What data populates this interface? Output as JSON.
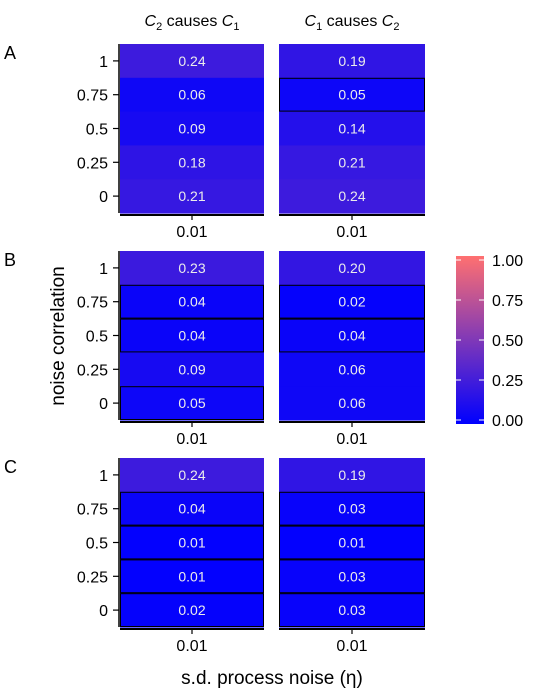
{
  "chart_data": {
    "type": "heatmap",
    "column_headers": [
      {
        "main": "C",
        "sub1": "2",
        "mid": " causes ",
        "main2": "C",
        "sub2": "1"
      },
      {
        "main": "C",
        "sub1": "1",
        "mid": " causes ",
        "main2": "C",
        "sub2": "2"
      }
    ],
    "ylabel": "noise correlation",
    "xlabel": "s.d. process noise (η)",
    "y_ticks": [
      "1",
      "0.75",
      "0.5",
      "0.25",
      "0"
    ],
    "x_ticks": [
      "0.01"
    ],
    "panels": [
      {
        "label": "A",
        "columns": [
          [
            0.24,
            0.06,
            0.09,
            0.18,
            0.21
          ],
          [
            0.19,
            0.05,
            0.14,
            0.21,
            0.24
          ]
        ],
        "outlined": [
          [],
          [
            1
          ]
        ]
      },
      {
        "label": "B",
        "columns": [
          [
            0.23,
            0.04,
            0.04,
            0.09,
            0.05
          ],
          [
            0.2,
            0.02,
            0.04,
            0.06,
            0.06
          ]
        ],
        "outlined": [
          [
            1,
            2,
            4
          ],
          [
            1,
            2
          ]
        ]
      },
      {
        "label": "C",
        "columns": [
          [
            0.24,
            0.04,
            0.01,
            0.01,
            0.02
          ],
          [
            0.19,
            0.03,
            0.01,
            0.03,
            0.03
          ]
        ],
        "outlined": [
          [
            1,
            2,
            3,
            4
          ],
          [
            1,
            2,
            3,
            4
          ]
        ]
      }
    ],
    "colorbar": {
      "ticks": [
        "1.00",
        "0.75",
        "0.50",
        "0.25",
        "0.00"
      ],
      "range": [
        0,
        1
      ],
      "colors": {
        "low": "#0000ff",
        "high": "#ff7070"
      }
    }
  }
}
